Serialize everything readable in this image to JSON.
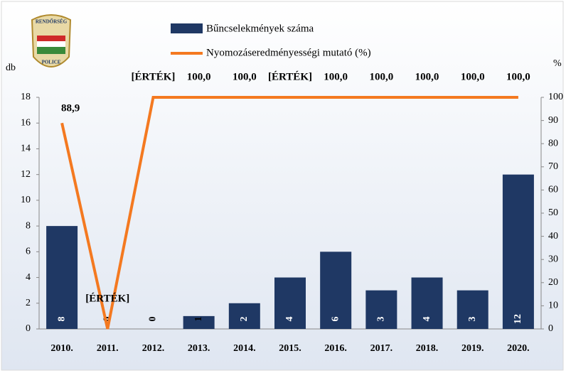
{
  "logo": {
    "top": "RENDŐRSÉG",
    "bottom": "POLICE"
  },
  "chart_data": {
    "type": "bar",
    "y_title": "db",
    "y2_title": "%",
    "categories": [
      "2010.",
      "2011.",
      "2012.",
      "2013.",
      "2014.",
      "2015.",
      "2016.",
      "2017.",
      "2018.",
      "2019.",
      "2020."
    ],
    "series": [
      {
        "name": "Bűncselekmények száma",
        "type": "bar",
        "color": "#1f3864",
        "values": [
          8,
          0,
          0,
          1,
          2,
          4,
          6,
          3,
          4,
          3,
          12
        ]
      },
      {
        "name": "Nyomozáseredményességi mutató (%)",
        "type": "line",
        "axis": "y2",
        "color": "#f47920",
        "values": [
          88.9,
          0,
          100,
          100,
          100,
          100,
          100,
          100,
          100,
          100,
          100
        ],
        "value_labels": [
          "88,9",
          "[ÉRTÉK]",
          "[ÉRTÉK]",
          "100,0",
          "100,0",
          "[ÉRTÉK]",
          "100,0",
          "100,0",
          "100,0",
          "100,0",
          "100,0"
        ]
      }
    ],
    "ylim": [
      0,
      18
    ],
    "yticks": [
      0,
      2,
      4,
      6,
      8,
      10,
      12,
      14,
      16,
      18
    ],
    "y2lim": [
      0,
      100
    ],
    "y2ticks": [
      0,
      10,
      20,
      30,
      40,
      50,
      60,
      70,
      80,
      90,
      100
    ]
  }
}
